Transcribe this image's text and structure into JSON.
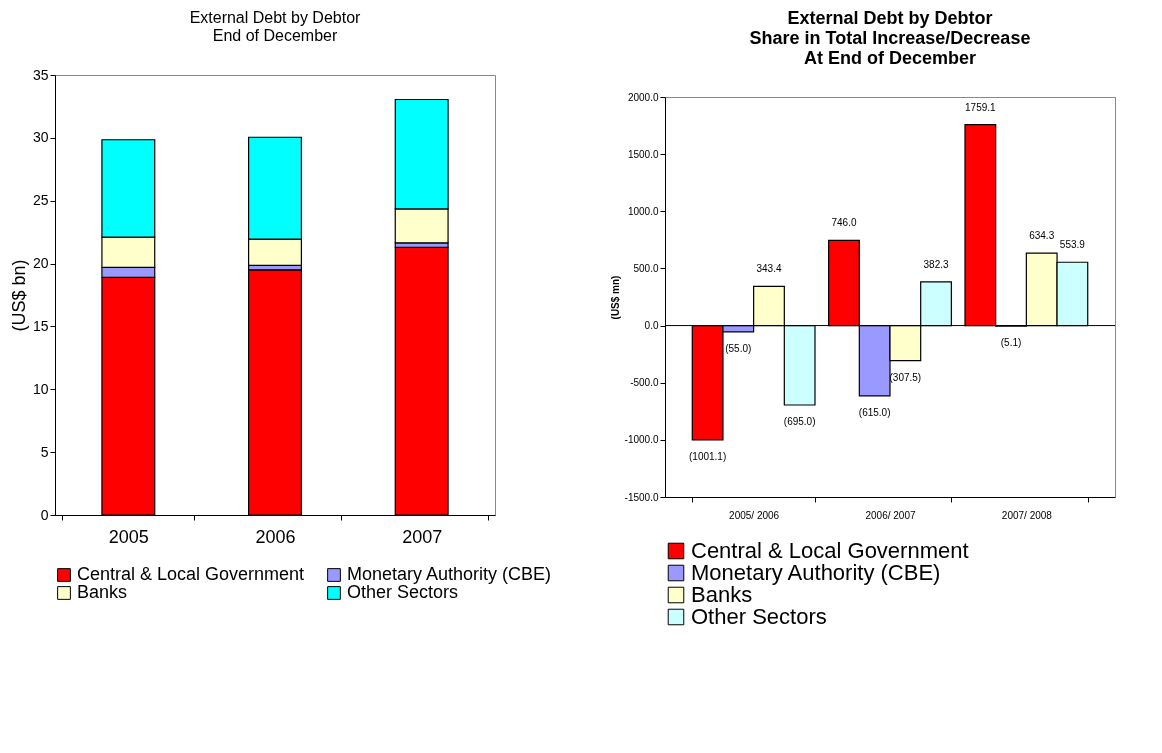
{
  "chart_data": [
    {
      "type": "bar",
      "title": "External Debt by Debtor\nEnd of December",
      "ylabel": "(US$ bn)",
      "categories": [
        "2005",
        "2006",
        "2007"
      ],
      "stacked": true,
      "ylim": [
        0,
        35
      ],
      "yticks": [
        0,
        5,
        10,
        15,
        20,
        25,
        30,
        35
      ],
      "legend": "bottom",
      "grid": false,
      "series": [
        {
          "name": "Central & Local Government",
          "color": "#ff0000",
          "values": [
            18.9,
            19.5,
            21.3
          ]
        },
        {
          "name": "Monetary Authority (CBE)",
          "color": "#9999ff",
          "values": [
            0.8,
            0.35,
            0.35
          ]
        },
        {
          "name": "Banks",
          "color": "#ffffcc",
          "values": [
            2.4,
            2.1,
            2.7
          ]
        },
        {
          "name": "Other Sectors",
          "color": "#00ffff",
          "values": [
            7.75,
            8.1,
            8.7
          ]
        }
      ]
    },
    {
      "type": "bar",
      "title": "External Debt by Debtor\nShare in Total Increase/Decrease\nAt End of December",
      "ylabel": "(US$ mn)",
      "categories": [
        "2005/ 2006",
        "2006/ 2007",
        "2007/ 2008"
      ],
      "ylim": [
        -1500,
        2000
      ],
      "yticks": [
        {
          "value": -1500,
          "label": "-1500.0"
        },
        {
          "value": -1000,
          "label": "-1000.0"
        },
        {
          "value": -500,
          "label": "-500.0"
        },
        {
          "value": 0,
          "label": "0.0"
        },
        {
          "value": 500,
          "label": "500.0"
        },
        {
          "value": 1000,
          "label": "1000.0"
        },
        {
          "value": 1500,
          "label": "1500.0"
        },
        {
          "value": 2000,
          "label": "2000.0"
        }
      ],
      "legend": "bottom",
      "grid": false,
      "ref_lines": [
        {
          "axis": "y",
          "value": 0
        }
      ],
      "series": [
        {
          "name": "Central & Local Government",
          "color": "#ff0000",
          "values": [
            -1001.1,
            746.0,
            1759.1
          ],
          "value_labels": [
            "(1001.1)",
            "746.0",
            "1759.1"
          ]
        },
        {
          "name": "Monetary Authority (CBE)",
          "color": "#9999ff",
          "values": [
            -55.0,
            -615.0,
            -5.1
          ],
          "value_labels": [
            "(55.0)",
            "(615.0)",
            "(5.1)"
          ]
        },
        {
          "name": "Banks",
          "color": "#ffffcc",
          "values": [
            343.4,
            -307.5,
            634.3
          ],
          "value_labels": [
            "343.4",
            "(307.5)",
            "634.3"
          ]
        },
        {
          "name": "Other Sectors",
          "color": "#ccffff",
          "values": [
            -695.0,
            382.3,
            553.9
          ],
          "value_labels": [
            "(695.0)",
            "382.3",
            "553.9"
          ]
        }
      ]
    }
  ]
}
